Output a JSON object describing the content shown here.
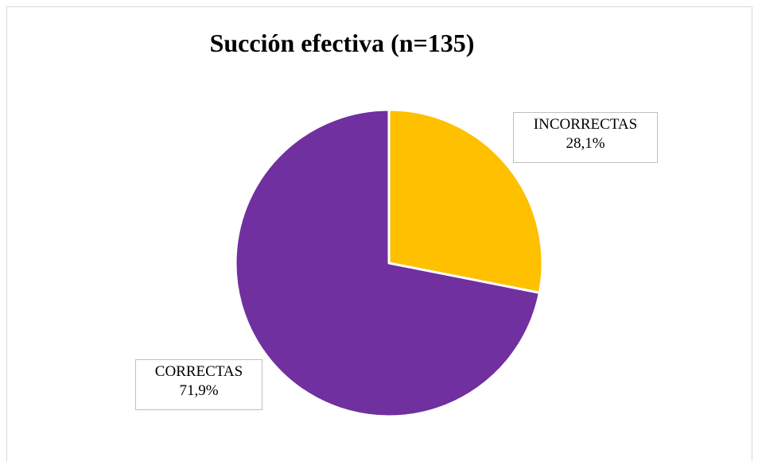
{
  "chart_data": {
    "type": "pie",
    "title": "Succión efectiva (n=135)",
    "categories": [
      "INCORRECTAS",
      "CORRECTAS"
    ],
    "values": [
      28.1,
      71.9
    ],
    "value_labels": [
      "28,1%",
      "71,9%"
    ],
    "colors": [
      "#FFC000",
      "#7030A0"
    ],
    "start_angle": "12 o'clock",
    "direction": "clockwise",
    "legend": "none",
    "data_labels": "outside with border"
  }
}
